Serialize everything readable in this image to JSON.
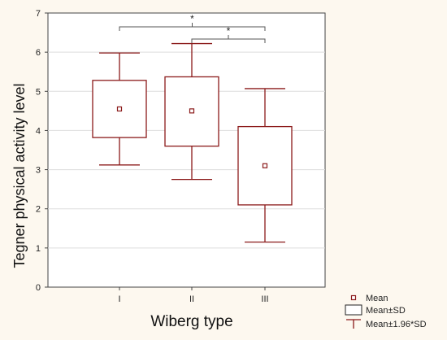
{
  "colors": {
    "background": "#fdf8ef",
    "plot_background": "#ffffff",
    "series": "#8b1a1a",
    "axis": "#444444",
    "grid": "#dddddd",
    "bracket": "#555555"
  },
  "chart_data": {
    "type": "box",
    "title": "",
    "xlabel": "Wiberg type",
    "ylabel": "Tegner physical activity level",
    "ylim": [
      0,
      7
    ],
    "yticks": [
      "0",
      "1",
      "2",
      "3",
      "4",
      "5",
      "6",
      "7"
    ],
    "grid": true,
    "categories": [
      "I",
      "II",
      "III"
    ],
    "series": [
      {
        "category": "I",
        "mean": 4.55,
        "sd_low": 3.82,
        "sd_high": 5.28,
        "ci_low": 3.12,
        "ci_high": 5.98
      },
      {
        "category": "II",
        "mean": 4.5,
        "sd_low": 3.6,
        "sd_high": 5.37,
        "ci_low": 2.75,
        "ci_high": 6.22
      },
      {
        "category": "III",
        "mean": 3.1,
        "sd_low": 2.1,
        "sd_high": 4.1,
        "ci_low": 1.15,
        "ci_high": 5.07
      }
    ],
    "significance": [
      {
        "from": "I",
        "to": "III",
        "label": "*"
      },
      {
        "from": "II",
        "to": "III",
        "label": "*"
      }
    ],
    "legend": {
      "placement": "bottom-right",
      "items": [
        {
          "symbol": "mean",
          "label": "Mean"
        },
        {
          "symbol": "box",
          "label": "Mean±SD"
        },
        {
          "symbol": "whisker",
          "label": "Mean±1.96*SD"
        }
      ]
    }
  }
}
